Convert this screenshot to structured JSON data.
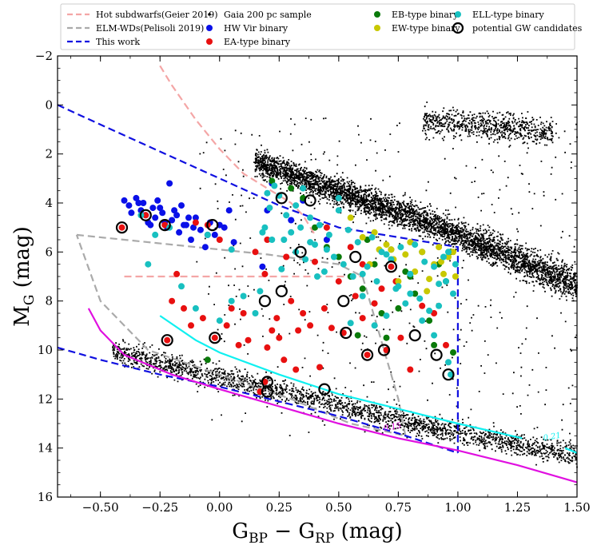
{
  "chart_data": {
    "type": "scatter",
    "title": "",
    "xlabel": "G_BP − G_RP (mag)",
    "ylabel": "M_G (mag)",
    "xlabel_parts": {
      "g1": "G",
      "s1": "BP",
      "mid": " − G",
      "s2": "RP",
      "end": " (mag)"
    },
    "ylabel_parts": {
      "m": "M",
      "s": "G",
      "end": " (mag)"
    },
    "xlim": [
      -0.68,
      1.5
    ],
    "ylim": [
      16,
      -2
    ],
    "y_inverted": true,
    "grid": false,
    "legend_position": "top",
    "x_ticks": [
      "−0.50",
      "−0.25",
      "0.00",
      "0.25",
      "0.50",
      "0.75",
      "1.00",
      "1.25",
      "1.50"
    ],
    "x_tick_values": [
      -0.5,
      -0.25,
      0.0,
      0.25,
      0.5,
      0.75,
      1.0,
      1.25,
      1.5
    ],
    "y_ticks": [
      "−2",
      "0",
      "2",
      "4",
      "6",
      "8",
      "10",
      "12",
      "14",
      "16"
    ],
    "y_tick_values": [
      -2,
      0,
      2,
      4,
      6,
      8,
      10,
      12,
      14,
      16
    ],
    "legend": [
      {
        "label": "Hot subdwarfs(Geier 2019)",
        "kind": "line",
        "color": "#f4a6a6",
        "dash": true
      },
      {
        "label": "ELM-WDs(Pelisoli 2019)",
        "kind": "line",
        "color": "#aaaaaa",
        "dash": true
      },
      {
        "label": "This work",
        "kind": "line",
        "color": "#1010e0",
        "dash": true
      },
      {
        "label": "Gaia 200 pc sample",
        "kind": "dot",
        "color": "#000000"
      },
      {
        "label": "HW Vir binary",
        "kind": "marker",
        "color": "#0a10e8"
      },
      {
        "label": "EA-type binary",
        "kind": "marker",
        "color": "#e81010"
      },
      {
        "label": "EB-type binary",
        "kind": "marker",
        "color": "#0a7a0a"
      },
      {
        "label": "EW-type binary",
        "kind": "marker",
        "color": "#c8c800"
      },
      {
        "label": "ELL-type binary",
        "kind": "marker",
        "color": "#18c0c0"
      },
      {
        "label": "potential GW candidates",
        "kind": "ring",
        "color": "#000000"
      }
    ],
    "series": [
      {
        "name": "HW Vir binary",
        "color": "#0a10e8",
        "x": [
          -0.4,
          -0.38,
          -0.35,
          -0.33,
          -0.32,
          -0.3,
          -0.28,
          -0.27,
          -0.26,
          -0.24,
          -0.22,
          -0.21,
          -0.2,
          -0.18,
          -0.17,
          -0.16,
          -0.14,
          -0.12,
          -0.1,
          -0.08,
          -0.06,
          -0.04,
          -0.02,
          0.0,
          0.02,
          0.04,
          0.06,
          -0.37,
          -0.34,
          -0.31,
          -0.29,
          -0.25,
          -0.23,
          -0.19,
          -0.15,
          -0.13,
          -0.11,
          -0.05,
          0.2,
          0.22,
          0.18,
          0.35,
          0.45,
          0.3
        ],
        "y": [
          3.9,
          4.1,
          3.8,
          4.3,
          4.0,
          4.8,
          4.2,
          4.6,
          3.9,
          4.4,
          5.0,
          3.2,
          4.7,
          4.5,
          5.2,
          4.1,
          4.9,
          5.5,
          4.6,
          5.1,
          5.8,
          4.8,
          5.3,
          4.9,
          5.0,
          4.3,
          5.6,
          4.4,
          4.0,
          4.5,
          4.9,
          4.2,
          4.8,
          4.3,
          4.9,
          4.6,
          5.0,
          5.3,
          4.3,
          3.2,
          6.6,
          3.9,
          5.5,
          4.7
        ]
      },
      {
        "name": "EA-type binary",
        "color": "#e81010",
        "x": [
          -0.41,
          -0.31,
          -0.23,
          -0.22,
          -0.2,
          -0.18,
          -0.15,
          -0.12,
          -0.1,
          -0.07,
          -0.05,
          -0.02,
          0.0,
          0.03,
          0.05,
          0.08,
          0.1,
          0.12,
          0.15,
          0.17,
          0.19,
          0.2,
          0.22,
          0.24,
          0.27,
          0.3,
          0.33,
          0.35,
          0.38,
          0.4,
          0.42,
          0.44,
          0.47,
          0.5,
          0.52,
          0.55,
          0.57,
          0.6,
          0.62,
          0.65,
          0.68,
          0.7,
          0.72,
          0.74,
          0.76,
          0.8,
          0.85,
          0.9,
          0.95,
          0.2,
          0.19,
          0.25,
          0.28,
          0.32,
          0.45,
          0.6
        ],
        "y": [
          5.0,
          4.5,
          4.9,
          9.6,
          8.0,
          6.9,
          8.3,
          9.0,
          4.8,
          8.7,
          4.9,
          9.5,
          5.5,
          9.0,
          8.3,
          9.8,
          8.5,
          9.6,
          6.0,
          11.7,
          11.3,
          9.9,
          9.2,
          8.7,
          10.4,
          8.0,
          9.2,
          8.5,
          9.0,
          6.4,
          10.7,
          8.3,
          9.1,
          7.2,
          9.3,
          5.8,
          7.8,
          6.5,
          10.2,
          8.1,
          7.5,
          10.0,
          6.6,
          7.2,
          9.5,
          10.8,
          8.2,
          8.5,
          9.8,
          5.5,
          6.9,
          9.5,
          6.2,
          10.8,
          5.0,
          8.7
        ]
      },
      {
        "name": "EB-type binary",
        "color": "#0a7a0a",
        "x": [
          0.22,
          0.3,
          0.35,
          0.4,
          0.45,
          0.5,
          0.55,
          0.6,
          0.65,
          0.7,
          0.75,
          0.8,
          0.85,
          0.88,
          0.9,
          0.92,
          0.95,
          0.97,
          0.98,
          -0.05,
          0.62,
          0.68,
          0.78,
          0.82,
          0.58,
          0.72
        ],
        "y": [
          3.1,
          3.4,
          3.8,
          5.0,
          5.8,
          6.2,
          7.0,
          7.5,
          6.5,
          9.5,
          8.3,
          7.0,
          6.0,
          8.8,
          9.8,
          6.5,
          7.2,
          6.0,
          10.1,
          10.4,
          5.5,
          8.5,
          6.8,
          7.7,
          9.4,
          5.9
        ]
      },
      {
        "name": "EW-type binary",
        "color": "#c8c800",
        "x": [
          0.55,
          0.6,
          0.63,
          0.67,
          0.7,
          0.73,
          0.75,
          0.78,
          0.8,
          0.82,
          0.85,
          0.87,
          0.9,
          0.92,
          0.94,
          0.96,
          0.98,
          0.99,
          0.65,
          0.72,
          0.88,
          0.93
        ],
        "y": [
          4.6,
          5.4,
          6.5,
          5.9,
          5.7,
          6.3,
          7.2,
          6.1,
          5.6,
          6.8,
          6.0,
          7.6,
          6.5,
          5.8,
          6.9,
          6.2,
          6.0,
          7.0,
          5.2,
          5.9,
          7.1,
          6.4
        ]
      },
      {
        "name": "ELL-type binary",
        "color": "#18c0c0",
        "x": [
          -0.3,
          -0.27,
          -0.21,
          -0.16,
          -0.1,
          0.0,
          0.05,
          0.1,
          0.15,
          0.17,
          0.2,
          0.21,
          0.23,
          0.25,
          0.27,
          0.28,
          0.3,
          0.32,
          0.34,
          0.36,
          0.38,
          0.4,
          0.42,
          0.44,
          0.46,
          0.48,
          0.5,
          0.52,
          0.54,
          0.56,
          0.58,
          0.6,
          0.62,
          0.64,
          0.66,
          0.68,
          0.7,
          0.72,
          0.74,
          0.76,
          0.78,
          0.8,
          0.82,
          0.84,
          0.86,
          0.88,
          0.9,
          0.92,
          0.94,
          0.96,
          0.97,
          0.98,
          0.99,
          -0.33,
          -0.05,
          0.05,
          0.19,
          0.26,
          0.35,
          0.41,
          0.45,
          0.55,
          0.65,
          0.75,
          0.85,
          0.95,
          0.7,
          0.8,
          0.6,
          0.5,
          0.38,
          0.32,
          0.22,
          0.18,
          0.9,
          0.92,
          0.96
        ],
        "y": [
          6.5,
          5.3,
          5.0,
          7.4,
          8.3,
          8.8,
          8.0,
          7.8,
          8.5,
          7.6,
          3.6,
          4.2,
          3.3,
          3.7,
          5.5,
          4.5,
          5.2,
          6.0,
          5.0,
          6.3,
          4.6,
          5.7,
          4.9,
          6.8,
          5.3,
          6.2,
          4.3,
          6.5,
          5.1,
          7.0,
          5.6,
          7.8,
          6.6,
          5.4,
          7.2,
          6.0,
          8.6,
          6.3,
          7.5,
          5.8,
          8.1,
          6.9,
          5.7,
          7.9,
          6.4,
          8.4,
          9.4,
          7.3,
          6.2,
          10.5,
          11.0,
          7.7,
          6.5,
          4.5,
          5.3,
          5.9,
          5.0,
          6.7,
          3.4,
          7.0,
          5.9,
          8.9,
          9.0,
          7.4,
          8.8,
          7.2,
          6.1,
          7.7,
          6.9,
          3.8,
          5.6,
          4.1,
          5.5,
          5.2,
          6.6,
          8.2,
          6.0
        ]
      },
      {
        "name": "potential GW candidates",
        "color": "#000000",
        "x": [
          -0.41,
          -0.31,
          -0.23,
          -0.22,
          -0.02,
          -0.03,
          0.19,
          0.2,
          0.2,
          0.26,
          0.26,
          0.34,
          0.38,
          0.44,
          0.52,
          0.53,
          0.57,
          0.62,
          0.69,
          0.72,
          0.82,
          0.91,
          0.96
        ],
        "y": [
          5.0,
          4.5,
          4.9,
          9.6,
          9.5,
          4.9,
          8.0,
          11.3,
          11.7,
          7.6,
          3.8,
          6.0,
          3.9,
          11.6,
          8.0,
          9.3,
          6.2,
          10.2,
          10.0,
          6.6,
          9.4,
          10.2,
          11.0
        ]
      }
    ],
    "curves": [
      {
        "name": "Hot subdwarfs(Geier 2019)",
        "color": "#f4a6a6",
        "dash": true,
        "x": [
          -0.25,
          -0.2,
          -0.1,
          0.0,
          0.1,
          0.2,
          0.3,
          0.35,
          0.4
        ],
        "y": [
          -1.6,
          -0.8,
          0.6,
          1.8,
          2.8,
          3.4,
          4.0,
          4.5,
          5.3
        ]
      },
      {
        "name": "Hot subdwarfs(Geier 2019)",
        "color": "#f4a6a6",
        "dash": true,
        "x": [
          -0.4,
          -0.2,
          0.0,
          0.2,
          0.4,
          0.6
        ],
        "y": [
          7.0,
          7.0,
          7.0,
          7.0,
          7.0,
          7.0
        ]
      },
      {
        "name": "ELM-WDs(Pelisoli 2019)",
        "color": "#aaaaaa",
        "dash": true,
        "x": [
          -0.6,
          -0.2,
          0.2,
          0.5,
          0.6,
          0.75,
          0.78,
          0.55,
          0.3,
          0.0,
          -0.3,
          -0.5,
          -0.6
        ],
        "y": [
          5.3,
          5.7,
          6.1,
          6.5,
          7.0,
          12.0,
          13.5,
          13.0,
          12.0,
          11.0,
          10.0,
          8.0,
          5.3
        ]
      },
      {
        "name": "This work",
        "color": "#1010e0",
        "dash": true,
        "x": [
          -0.68,
          -0.5,
          -0.25,
          0.0,
          0.25,
          0.5,
          0.75,
          1.0,
          1.0
        ],
        "y": [
          0.0,
          0.8,
          1.9,
          3.0,
          4.1,
          5.0,
          5.4,
          5.8,
          14.2
        ]
      },
      {
        "name": "This work",
        "color": "#1010e0",
        "dash": true,
        "x": [
          -0.68,
          -0.5,
          -0.25,
          0.0,
          0.25,
          0.5,
          0.75,
          1.0
        ],
        "y": [
          9.9,
          10.4,
          11.0,
          11.5,
          12.1,
          12.7,
          13.4,
          14.2
        ]
      },
      {
        "name": "",
        "color": "#e010e0",
        "dash": false,
        "x": [
          -0.55,
          -0.5,
          -0.4,
          -0.3,
          -0.2,
          0.0,
          0.25,
          0.5,
          0.75,
          1.0,
          1.25,
          1.5
        ],
        "y": [
          8.3,
          9.2,
          10.2,
          10.6,
          11.0,
          11.6,
          12.3,
          13.0,
          13.6,
          14.1,
          14.7,
          15.4
        ]
      },
      {
        "name": "",
        "color": "#10f0f0",
        "dash": false,
        "x": [
          -0.25,
          -0.1,
          0.0,
          0.25,
          0.5,
          0.75,
          1.0,
          1.27
        ],
        "y": [
          8.6,
          9.6,
          10.1,
          11.0,
          11.8,
          12.4,
          13.0,
          13.6
        ]
      },
      {
        "name": "",
        "color": "#10f0f0",
        "dash": false,
        "x": [
          1.45,
          1.5
        ],
        "y": [
          14.0,
          14.2
        ]
      }
    ],
    "curve_labels": [
      {
        "text": "0.21",
        "x": 1.36,
        "y": 13.7,
        "color": "#10f0f0"
      },
      {
        "text": "0.15",
        "x": 0.69,
        "y": 13.3,
        "color": "#e010e0"
      }
    ]
  }
}
